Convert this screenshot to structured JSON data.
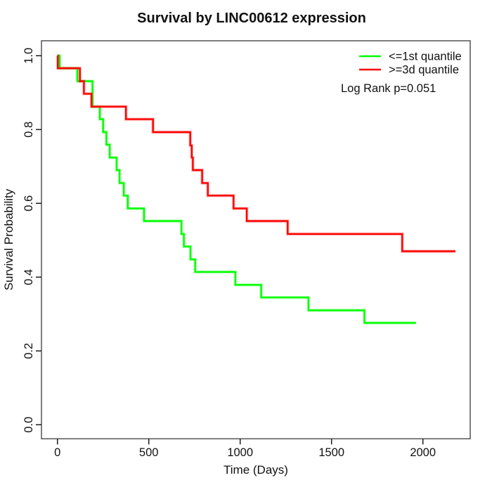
{
  "title": "Survival by LINC00612 expression",
  "axes": {
    "x_label": "Time (Days)",
    "y_label": "Survival Probability"
  },
  "legend": {
    "entries": [
      {
        "label": "<=1st quantile",
        "color": "#00FF00"
      },
      {
        "label": ">=3d quantile",
        "color": "#FF0000"
      }
    ],
    "annotation": "Log Rank p=0.051"
  },
  "chart_data": {
    "type": "line",
    "subtype": "kaplan-meier-step",
    "title": "Survival by LINC00612 expression",
    "xlabel": "Time (Days)",
    "ylabel": "Survival Probability",
    "xlim": [
      0,
      2260
    ],
    "ylim": [
      0.0,
      1.0
    ],
    "grid": false,
    "legend_position": "top-right",
    "xticks": [
      0,
      500,
      1000,
      1500,
      2000
    ],
    "xtick_labels": [
      "0",
      "500",
      "1000",
      "1500",
      "2000"
    ],
    "yticks": [
      0.0,
      0.2,
      0.4,
      0.6,
      0.8,
      1.0
    ],
    "ytick_labels": [
      "0.0",
      "0.2",
      "0.4",
      "0.6",
      "0.8",
      "1.0"
    ],
    "series": [
      {
        "name": "<=1st quantile",
        "color": "#00FF00",
        "points": [
          [
            0,
            1.0
          ],
          [
            12,
            0.966
          ],
          [
            109,
            0.931
          ],
          [
            192,
            0.862
          ],
          [
            232,
            0.828
          ],
          [
            250,
            0.793
          ],
          [
            268,
            0.759
          ],
          [
            286,
            0.724
          ],
          [
            324,
            0.69
          ],
          [
            340,
            0.655
          ],
          [
            363,
            0.621
          ],
          [
            385,
            0.586
          ],
          [
            474,
            0.552
          ],
          [
            679,
            0.517
          ],
          [
            692,
            0.483
          ],
          [
            728,
            0.448
          ],
          [
            754,
            0.414
          ],
          [
            974,
            0.379
          ],
          [
            1115,
            0.345
          ],
          [
            1374,
            0.31
          ],
          [
            1680,
            0.276
          ]
        ],
        "end_time": 1962
      },
      {
        "name": ">=3d quantile",
        "color": "#FF0000",
        "points": [
          [
            0,
            1.0
          ],
          [
            2,
            0.966
          ],
          [
            123,
            0.931
          ],
          [
            145,
            0.897
          ],
          [
            186,
            0.862
          ],
          [
            375,
            0.828
          ],
          [
            523,
            0.793
          ],
          [
            727,
            0.757
          ],
          [
            735,
            0.724
          ],
          [
            741,
            0.69
          ],
          [
            792,
            0.655
          ],
          [
            823,
            0.621
          ],
          [
            964,
            0.586
          ],
          [
            1036,
            0.552
          ],
          [
            1260,
            0.517
          ],
          [
            1887,
            0.47
          ]
        ],
        "end_time": 2178
      }
    ],
    "annotation": "Log Rank p=0.051"
  }
}
